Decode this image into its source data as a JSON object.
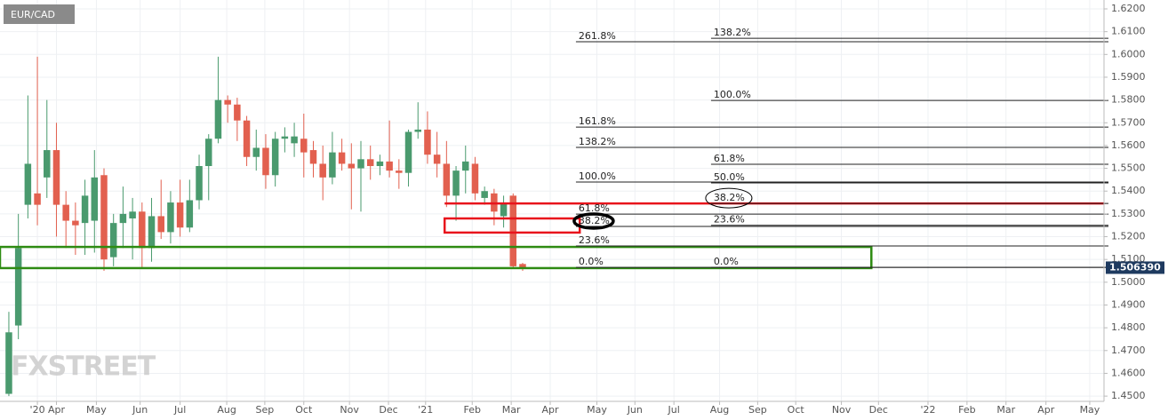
{
  "chart_data": {
    "type": "candlestick",
    "title": "EUR/CAD",
    "watermark": "FXSTREET",
    "up_color": "#4a9a6e",
    "down_color": "#e2604f",
    "grid": true,
    "x": [
      0,
      1,
      2,
      3,
      4,
      5,
      6,
      7,
      8,
      9,
      10,
      11,
      12,
      13,
      14,
      15,
      16,
      17,
      18,
      19,
      20,
      21,
      22,
      23,
      24,
      25,
      26,
      27,
      28,
      29,
      30,
      31,
      32,
      33,
      34,
      35,
      36,
      37,
      38,
      39,
      40,
      41,
      42,
      43,
      44,
      45,
      46,
      47,
      48,
      49,
      50,
      51,
      52,
      53,
      54
    ],
    "open": [
      1.451,
      1.481,
      1.534,
      1.539,
      1.546,
      1.558,
      1.534,
      1.527,
      1.526,
      1.527,
      1.547,
      1.511,
      1.526,
      1.528,
      1.531,
      1.515,
      1.529,
      1.522,
      1.535,
      1.524,
      1.536,
      1.551,
      1.563,
      1.58,
      1.578,
      1.571,
      1.555,
      1.559,
      1.547,
      1.563,
      1.561,
      1.563,
      1.558,
      1.552,
      1.546,
      1.557,
      1.552,
      1.55,
      1.554,
      1.551,
      1.553,
      1.549,
      1.548,
      1.566,
      1.567,
      1.556,
      1.552,
      1.538,
      1.549,
      1.552,
      1.537,
      1.539,
      1.529,
      1.538,
      1.508
    ],
    "high": [
      1.487,
      1.53,
      1.582,
      1.599,
      1.58,
      1.57,
      1.54,
      1.535,
      1.545,
      1.558,
      1.55,
      1.53,
      1.542,
      1.537,
      1.535,
      1.537,
      1.545,
      1.54,
      1.545,
      1.545,
      1.556,
      1.565,
      1.599,
      1.582,
      1.581,
      1.573,
      1.567,
      1.565,
      1.566,
      1.568,
      1.57,
      1.574,
      1.562,
      1.56,
      1.566,
      1.563,
      1.561,
      1.562,
      1.56,
      1.556,
      1.571,
      1.554,
      1.567,
      1.579,
      1.575,
      1.566,
      1.562,
      1.551,
      1.56,
      1.555,
      1.542,
      1.541,
      1.538,
      1.539,
      1.5085
    ],
    "low": [
      1.45,
      1.475,
      1.528,
      1.525,
      1.537,
      1.52,
      1.515,
      1.512,
      1.512,
      1.513,
      1.505,
      1.507,
      1.515,
      1.51,
      1.506,
      1.509,
      1.519,
      1.517,
      1.52,
      1.522,
      1.532,
      1.536,
      1.561,
      1.57,
      1.562,
      1.551,
      1.549,
      1.541,
      1.542,
      1.557,
      1.555,
      1.546,
      1.546,
      1.536,
      1.543,
      1.549,
      1.532,
      1.531,
      1.545,
      1.547,
      1.546,
      1.541,
      1.542,
      1.563,
      1.552,
      1.546,
      1.533,
      1.527,
      1.539,
      1.536,
      1.534,
      1.525,
      1.524,
      1.506,
      1.505
    ],
    "close": [
      1.478,
      1.515,
      1.552,
      1.534,
      1.558,
      1.534,
      1.527,
      1.525,
      1.538,
      1.546,
      1.51,
      1.526,
      1.53,
      1.531,
      1.515,
      1.529,
      1.522,
      1.535,
      1.524,
      1.536,
      1.551,
      1.563,
      1.58,
      1.578,
      1.571,
      1.555,
      1.559,
      1.547,
      1.563,
      1.564,
      1.564,
      1.557,
      1.552,
      1.546,
      1.557,
      1.552,
      1.55,
      1.554,
      1.551,
      1.553,
      1.549,
      1.548,
      1.566,
      1.567,
      1.556,
      1.552,
      1.538,
      1.549,
      1.553,
      1.539,
      1.54,
      1.531,
      1.535,
      1.507,
      1.5064
    ],
    "xlim": [
      -0.93,
      115.1
    ],
    "ylim": [
      1.4477,
      1.6239
    ],
    "yticks": [
      {
        "value": 1.45,
        "label": "1.4500"
      },
      {
        "value": 1.46,
        "label": "1.4600"
      },
      {
        "value": 1.47,
        "label": "1.4700"
      },
      {
        "value": 1.48,
        "label": "1.4800"
      },
      {
        "value": 1.49,
        "label": "1.4900"
      },
      {
        "value": 1.5,
        "label": "1.5000"
      },
      {
        "value": 1.51,
        "label": "1.5100"
      },
      {
        "value": 1.52,
        "label": "1.5200"
      },
      {
        "value": 1.53,
        "label": "1.5300"
      },
      {
        "value": 1.54,
        "label": "1.5400"
      },
      {
        "value": 1.55,
        "label": "1.5500"
      },
      {
        "value": 1.56,
        "label": "1.5600"
      },
      {
        "value": 1.57,
        "label": "1.5700"
      },
      {
        "value": 1.58,
        "label": "1.5800"
      },
      {
        "value": 1.59,
        "label": "1.5900"
      },
      {
        "value": 1.6,
        "label": "1.6000"
      },
      {
        "value": 1.61,
        "label": "1.6100"
      },
      {
        "value": 1.62,
        "label": "1.6200"
      }
    ],
    "xticks": [
      {
        "value": 3,
        "label": "'20"
      },
      {
        "value": 5,
        "label": "Apr"
      },
      {
        "value": 9.2,
        "label": "May"
      },
      {
        "value": 13.8,
        "label": "Jun"
      },
      {
        "value": 18,
        "label": "Jul"
      },
      {
        "value": 22.9,
        "label": "Aug"
      },
      {
        "value": 26.9,
        "label": "Sep"
      },
      {
        "value": 31,
        "label": "Oct"
      },
      {
        "value": 35.8,
        "label": "Nov"
      },
      {
        "value": 39.9,
        "label": "Dec"
      },
      {
        "value": 43.8,
        "label": "'21"
      },
      {
        "value": 48.7,
        "label": "Feb"
      },
      {
        "value": 52.8,
        "label": "Mar"
      },
      {
        "value": 56.9,
        "label": "Apr"
      },
      {
        "value": 61.8,
        "label": "May"
      },
      {
        "value": 65.8,
        "label": "Jun"
      },
      {
        "value": 69.9,
        "label": "Jul"
      },
      {
        "value": 74.7,
        "label": "Aug"
      },
      {
        "value": 78.7,
        "label": "Sep"
      },
      {
        "value": 82.7,
        "label": "Oct"
      },
      {
        "value": 87.5,
        "label": "Nov"
      },
      {
        "value": 91.4,
        "label": "Dec"
      },
      {
        "value": 96.6,
        "label": "'22"
      },
      {
        "value": 100.7,
        "label": "Feb"
      },
      {
        "value": 104.8,
        "label": "Mar"
      },
      {
        "value": 109,
        "label": "Apr"
      },
      {
        "value": 113.6,
        "label": "May"
      }
    ],
    "last_price": {
      "value": 1.50639,
      "label": "1.506390"
    },
    "fib_levels": [
      {
        "label": "261.8%",
        "price": 1.6056,
        "x_start": 59.6
      },
      {
        "label": "161.8%",
        "price": 1.5681,
        "x_start": 59.6
      },
      {
        "label": "138.2%",
        "price": 1.5592,
        "x_start": 59.6
      },
      {
        "label": "100.0%",
        "price": 1.544,
        "x_start": 59.6
      },
      {
        "label": "61.8%",
        "price": 1.5299,
        "x_start": 59.6
      },
      {
        "label": "38.2%",
        "price": 1.5245,
        "x_start": 59.6,
        "circled": "thick"
      },
      {
        "label": "23.6%",
        "price": 1.5159,
        "x_start": 59.6
      },
      {
        "label": "0.0%",
        "price": 1.5065,
        "x_start": 59.6
      },
      {
        "label": "138.2%",
        "price": 1.6071,
        "x_start": 73.8
      },
      {
        "label": "100.0%",
        "price": 1.5798,
        "x_start": 73.8
      },
      {
        "label": "61.8%",
        "price": 1.5518,
        "x_start": 73.8
      },
      {
        "label": "50.0%",
        "price": 1.5436,
        "x_start": 73.8
      },
      {
        "label": "38.2%",
        "price": 1.5346,
        "x_start": 73.8,
        "circled": "thin"
      },
      {
        "label": "23.6%",
        "price": 1.525,
        "x_start": 73.8
      },
      {
        "label": "0.0%",
        "price": 1.5065,
        "x_start": 73.8
      }
    ],
    "red_line": {
      "price": 1.5346,
      "x_start": 45.8,
      "color": "#e8141c"
    },
    "zones": [
      {
        "x0": 45.8,
        "x1": 60,
        "top": 1.528,
        "bottom": 1.5218,
        "color": "#e8141c"
      },
      {
        "x0": -0.93,
        "x1": 90.65,
        "top": 1.5155,
        "bottom": 1.5062,
        "color": "#2e8b12"
      }
    ]
  }
}
